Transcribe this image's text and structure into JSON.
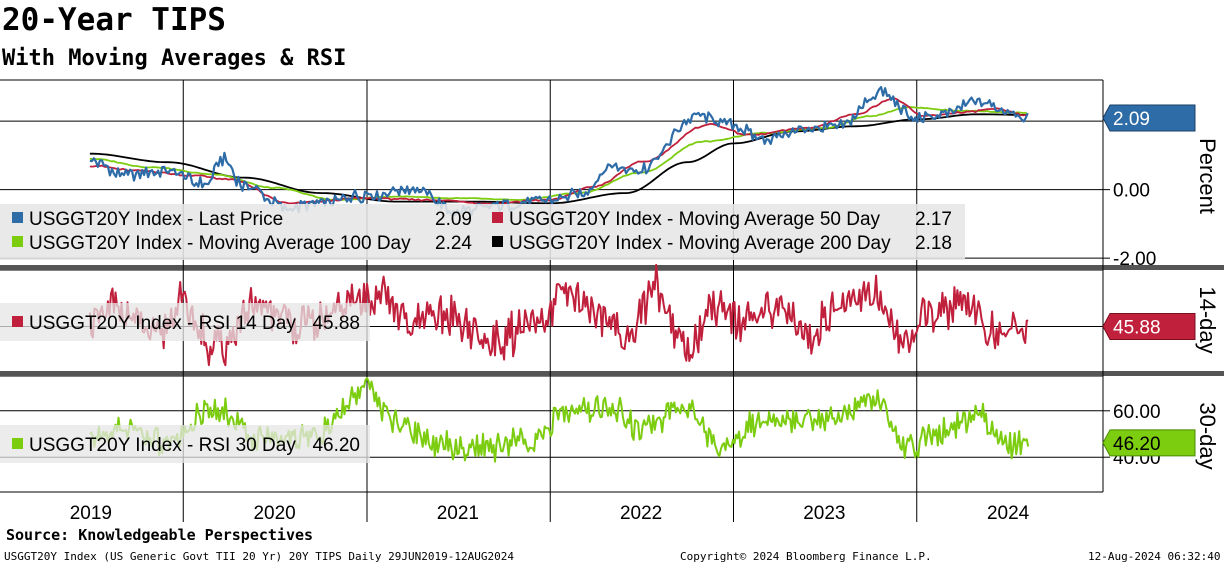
{
  "header": {
    "title": "20-Year TIPS",
    "subtitle": "With Moving Averages & RSI"
  },
  "footer": {
    "source": "Source: Knowledgeable Perspectives",
    "description": "USGGT20Y Index (US Generic Govt TII 20 Yr) 20Y TIPS  Daily 29JUN2019-12AUG2024",
    "copyright": "Copyright© 2024 Bloomberg Finance L.P.",
    "timestamp": "12-Aug-2024 06:32:40"
  },
  "colors": {
    "last_price": "#2e6ca8",
    "ma50": "#c0203c",
    "ma100": "#7ccc10",
    "ma200": "#000000",
    "rsi14": "#c0203c",
    "rsi30": "#7ccc10"
  },
  "chart_data": [
    {
      "type": "line",
      "panel": "price",
      "ylabel": "Percent",
      "ylim": [
        -2.2,
        3.2
      ],
      "yticks": [
        {
          "value": 0.0,
          "label": "0.00"
        },
        {
          "value": -2.0,
          "label": "-2.00"
        }
      ],
      "current_value_label": "2.09",
      "x_years": [
        "2019",
        "2020",
        "2021",
        "2022",
        "2023",
        "2024"
      ],
      "series": [
        {
          "key": "last_price",
          "legend": "USGGT20Y Index - Last Price",
          "legend_value": "2.09",
          "x": [
            "2019-06-29",
            "2019-09-01",
            "2019-12-01",
            "2020-02-15",
            "2020-03-20",
            "2020-05-01",
            "2020-08-01",
            "2020-10-01",
            "2021-01-01",
            "2021-04-01",
            "2021-07-01",
            "2021-10-01",
            "2022-01-01",
            "2022-03-01",
            "2022-05-01",
            "2022-07-01",
            "2022-10-20",
            "2023-01-01",
            "2023-03-01",
            "2023-06-01",
            "2023-08-01",
            "2023-10-20",
            "2023-12-28",
            "2024-03-01",
            "2024-05-01",
            "2024-07-01",
            "2024-08-12"
          ],
          "values": [
            0.85,
            0.45,
            0.55,
            0.15,
            0.9,
            0.1,
            -0.55,
            -0.4,
            -0.15,
            0.05,
            -0.65,
            -0.45,
            -0.3,
            -0.15,
            0.65,
            0.6,
            2.15,
            1.85,
            1.5,
            1.75,
            1.85,
            2.85,
            2.1,
            2.2,
            2.6,
            2.3,
            2.09
          ]
        },
        {
          "key": "ma50",
          "legend": "USGGT20Y Index - Moving Average 50 Day",
          "legend_value": "2.17",
          "x": [
            "2019-06-29",
            "2019-10-01",
            "2020-02-01",
            "2020-04-01",
            "2020-08-01",
            "2021-01-01",
            "2021-05-01",
            "2021-09-01",
            "2022-01-01",
            "2022-04-01",
            "2022-07-01",
            "2022-11-15",
            "2023-02-01",
            "2023-06-01",
            "2023-09-01",
            "2023-11-15",
            "2024-01-15",
            "2024-04-01",
            "2024-06-01",
            "2024-08-12"
          ],
          "values": [
            0.7,
            0.55,
            0.4,
            0.3,
            -0.4,
            -0.25,
            -0.3,
            -0.4,
            -0.3,
            0.1,
            0.8,
            1.9,
            1.6,
            1.8,
            2.2,
            2.65,
            2.15,
            2.25,
            2.35,
            2.17
          ]
        },
        {
          "key": "ma100",
          "legend": "USGGT20Y Index - Moving Average 100 Day",
          "legend_value": "2.24",
          "x": [
            "2019-06-29",
            "2019-11-01",
            "2020-03-01",
            "2020-07-01",
            "2020-11-01",
            "2021-03-01",
            "2021-07-01",
            "2021-11-01",
            "2022-03-01",
            "2022-07-01",
            "2022-11-01",
            "2023-03-01",
            "2023-07-01",
            "2023-10-01",
            "2023-12-15",
            "2024-04-01",
            "2024-08-12"
          ],
          "values": [
            0.9,
            0.65,
            0.45,
            0.05,
            -0.3,
            -0.2,
            -0.25,
            -0.3,
            -0.1,
            0.5,
            1.4,
            1.65,
            1.8,
            2.15,
            2.4,
            2.3,
            2.24
          ]
        },
        {
          "key": "ma200",
          "legend": "USGGT20Y Index - Moving Average 200 Day",
          "legend_value": "2.18",
          "x": [
            "2019-06-29",
            "2019-12-01",
            "2020-05-01",
            "2020-10-01",
            "2021-03-01",
            "2021-08-01",
            "2022-01-01",
            "2022-06-01",
            "2022-10-01",
            "2023-01-01",
            "2023-05-01",
            "2023-09-01",
            "2024-01-01",
            "2024-05-01",
            "2024-08-12"
          ],
          "values": [
            1.05,
            0.8,
            0.35,
            -0.1,
            -0.35,
            -0.35,
            -0.4,
            -0.1,
            0.8,
            1.35,
            1.7,
            1.85,
            2.05,
            2.2,
            2.18
          ]
        }
      ]
    },
    {
      "type": "line",
      "panel": "rsi14",
      "ylabel": "14-day",
      "ylim": [
        15,
        85
      ],
      "current_value_label": "45.88",
      "series": [
        {
          "key": "rsi14",
          "legend": "USGGT20Y Index - RSI 14 Day",
          "legend_value": "45.88",
          "x": [
            "2019-06-29",
            "2019-09-01",
            "2019-11-01",
            "2020-01-01",
            "2020-03-01",
            "2020-06-01",
            "2020-09-01",
            "2020-12-01",
            "2021-02-01",
            "2021-04-01",
            "2021-06-01",
            "2021-09-01",
            "2021-12-01",
            "2022-02-01",
            "2022-04-01",
            "2022-06-01",
            "2022-08-01",
            "2022-10-01",
            "2022-12-01",
            "2023-02-01",
            "2023-04-01",
            "2023-06-01",
            "2023-08-01",
            "2023-10-01",
            "2023-12-01",
            "2024-02-01",
            "2024-04-01",
            "2024-06-01",
            "2024-08-12"
          ],
          "values": [
            50,
            60,
            38,
            62,
            30,
            58,
            45,
            62,
            70,
            45,
            55,
            35,
            45,
            68,
            55,
            40,
            72,
            30,
            62,
            48,
            60,
            38,
            62,
            72,
            35,
            55,
            65,
            42,
            45.88
          ]
        }
      ]
    },
    {
      "type": "line",
      "panel": "rsi30",
      "ylabel": "30-day",
      "ylim": [
        25,
        75
      ],
      "yticks": [
        {
          "value": 60,
          "label": "60.00"
        },
        {
          "value": 40,
          "label": "40.00"
        }
      ],
      "current_value_label": "46.20",
      "series": [
        {
          "key": "rsi30",
          "legend": "USGGT20Y Index - RSI 30 Day",
          "legend_value": "46.20",
          "x": [
            "2019-06-29",
            "2019-09-01",
            "2019-12-01",
            "2020-03-01",
            "2020-06-01",
            "2020-10-01",
            "2021-01-01",
            "2021-03-01",
            "2021-06-01",
            "2021-09-01",
            "2021-12-01",
            "2022-02-01",
            "2022-05-01",
            "2022-07-01",
            "2022-10-01",
            "2022-12-01",
            "2023-03-01",
            "2023-06-01",
            "2023-08-01",
            "2023-10-01",
            "2023-12-15",
            "2024-03-01",
            "2024-05-01",
            "2024-07-01",
            "2024-08-12"
          ],
          "values": [
            48,
            52,
            46,
            62,
            48,
            50,
            70,
            54,
            45,
            44,
            48,
            60,
            62,
            52,
            63,
            44,
            55,
            58,
            56,
            65,
            45,
            52,
            58,
            45,
            46.2
          ]
        }
      ]
    }
  ]
}
